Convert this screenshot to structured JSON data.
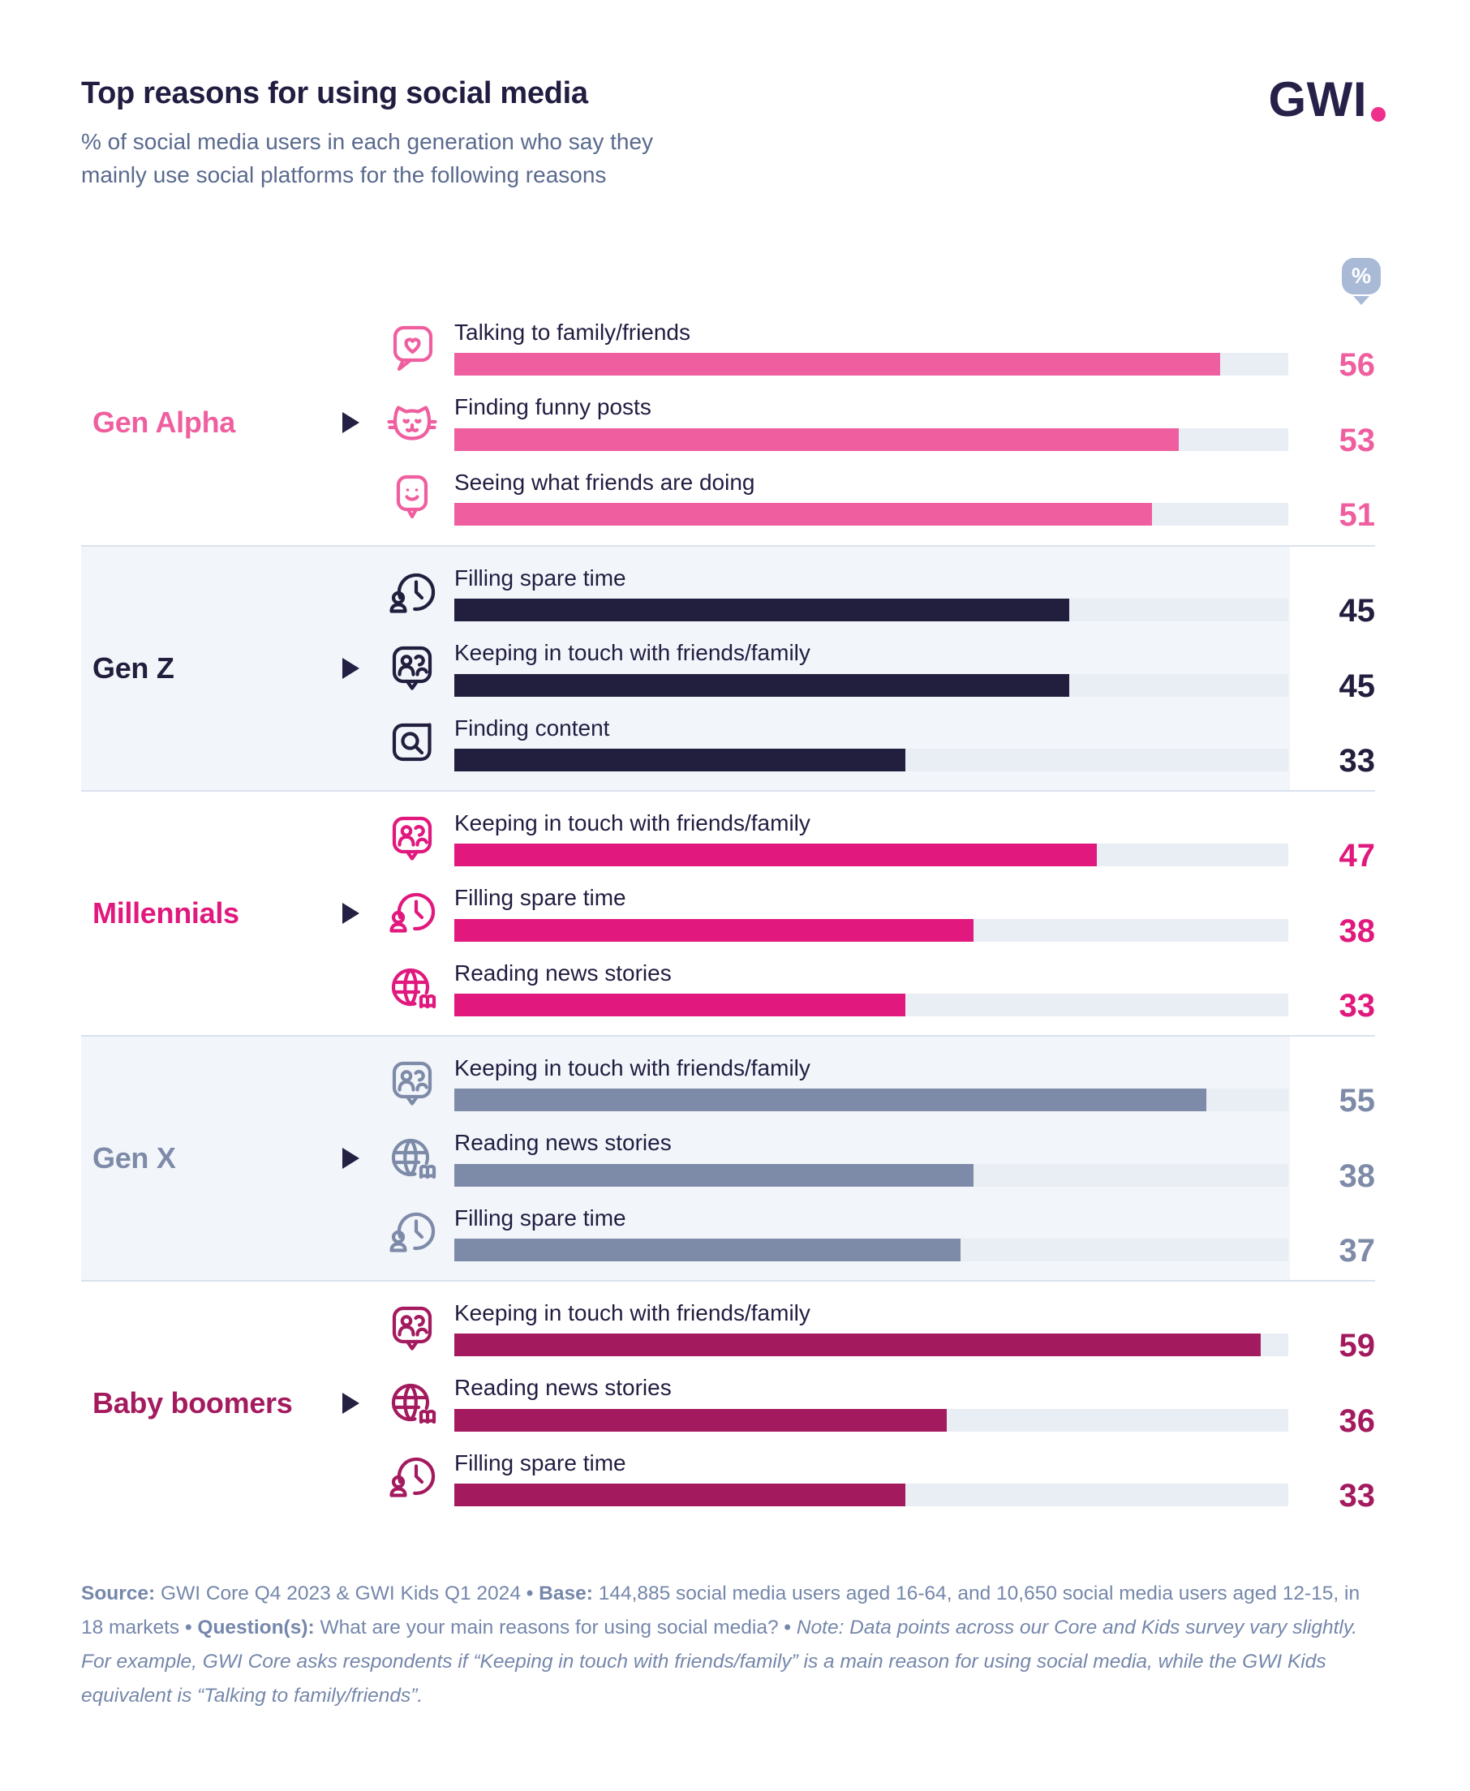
{
  "header": {
    "title": "Top reasons for using social media",
    "subtitle": "% of social media users in each generation who say they mainly use social platforms for the following reasons",
    "logo_text": "GWI"
  },
  "percent_pin": {
    "label": "%"
  },
  "chart_data": {
    "type": "bar",
    "orientation": "horizontal",
    "unit": "%",
    "bar_scale_max": 61,
    "track_color": "#e9edf4",
    "band_color": "#f2f5fa",
    "divider_color": "#dbe2ee",
    "ink_color": "#211d41",
    "groups": [
      {
        "generation": "Gen Alpha",
        "color": "#ef5f9f",
        "banded": false,
        "rows": [
          {
            "icon": "chat-heart-icon",
            "reason": "Talking to family/friends",
            "value": 56
          },
          {
            "icon": "cat-face-icon",
            "reason": "Finding funny posts",
            "value": 53
          },
          {
            "icon": "chat-smiley-icon",
            "reason": "Seeing what friends are doing",
            "value": 51
          }
        ]
      },
      {
        "generation": "Gen Z",
        "color": "#221e3e",
        "banded": true,
        "rows": [
          {
            "icon": "person-clock-icon",
            "reason": "Filling spare time",
            "value": 45
          },
          {
            "icon": "chat-people-icon",
            "reason": "Keeping in touch with friends/family",
            "value": 45
          },
          {
            "icon": "search-bubble-icon",
            "reason": "Finding content",
            "value": 33
          }
        ]
      },
      {
        "generation": "Millennials",
        "color": "#e1187d",
        "banded": false,
        "rows": [
          {
            "icon": "chat-people-icon",
            "reason": "Keeping in touch with friends/family",
            "value": 47
          },
          {
            "icon": "person-clock-icon",
            "reason": "Filling spare time",
            "value": 38
          },
          {
            "icon": "globe-news-icon",
            "reason": "Reading news stories",
            "value": 33
          }
        ]
      },
      {
        "generation": "Gen X",
        "color": "#7e8ba8",
        "banded": true,
        "rows": [
          {
            "icon": "chat-people-icon",
            "reason": "Keeping in touch with friends/family",
            "value": 55
          },
          {
            "icon": "globe-news-icon",
            "reason": "Reading news stories",
            "value": 38
          },
          {
            "icon": "person-clock-icon",
            "reason": "Filling spare time",
            "value": 37
          }
        ]
      },
      {
        "generation": "Baby boomers",
        "color": "#a41a5e",
        "banded": false,
        "rows": [
          {
            "icon": "chat-people-icon",
            "reason": "Keeping in touch with friends/family",
            "value": 59
          },
          {
            "icon": "globe-news-icon",
            "reason": "Reading news stories",
            "value": 36
          },
          {
            "icon": "person-clock-icon",
            "reason": "Filling spare time",
            "value": 33
          }
        ]
      }
    ]
  },
  "footer": {
    "segments": [
      {
        "text": "Source: ",
        "bold": true
      },
      {
        "text": "GWI Core Q4 2023 & GWI Kids Q1 2024 "
      },
      {
        "text": "• ",
        "bold": true
      },
      {
        "text": "Base: ",
        "bold": true
      },
      {
        "text": "144,885 social media users aged 16-64, and 10,650 social media users aged 12-15, in 18 markets "
      },
      {
        "text": "• ",
        "bold": true
      },
      {
        "text": "Question(s): ",
        "bold": true
      },
      {
        "text": "What are your main reasons for using social media? "
      },
      {
        "text": "• ",
        "bold": true
      },
      {
        "text": "Note: Data points across our Core and Kids survey vary slightly. For example, GWI Core asks respondents if “Keeping in touch with friends/family” is a main reason for using social media, while the GWI Kids equivalent is “Talking to family/friends”.",
        "italic": true
      }
    ]
  }
}
